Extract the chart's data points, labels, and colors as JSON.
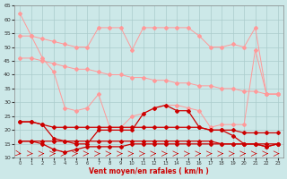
{
  "x": [
    0,
    1,
    2,
    3,
    4,
    5,
    6,
    7,
    8,
    9,
    10,
    11,
    12,
    13,
    14,
    15,
    16,
    17,
    18,
    19,
    20,
    21,
    22,
    23
  ],
  "series": {
    "rafale_top": [
      62,
      54,
      46,
      41,
      28,
      27,
      28,
      33,
      21,
      21,
      25,
      26,
      28,
      29,
      29,
      28,
      27,
      21,
      22,
      22,
      22,
      49,
      33,
      33
    ],
    "rafale_mid": [
      46,
      46,
      45,
      44,
      43,
      42,
      42,
      41,
      40,
      40,
      39,
      39,
      38,
      38,
      37,
      37,
      36,
      36,
      35,
      35,
      34,
      34,
      33,
      33
    ],
    "rafale_high": [
      54,
      54,
      53,
      52,
      51,
      50,
      50,
      57,
      57,
      57,
      49,
      57,
      57,
      57,
      57,
      57,
      54,
      50,
      50,
      51,
      50,
      57,
      33,
      33
    ],
    "wind_flat": [
      23,
      23,
      22,
      21,
      21,
      21,
      21,
      21,
      21,
      21,
      21,
      21,
      21,
      21,
      21,
      21,
      21,
      20,
      20,
      20,
      19,
      19,
      19,
      19
    ],
    "wind_mean": [
      23,
      23,
      22,
      17,
      16,
      15,
      15,
      20,
      20,
      20,
      20,
      26,
      28,
      29,
      27,
      27,
      21,
      20,
      20,
      18,
      15,
      15,
      14,
      15
    ],
    "wind_low": [
      16,
      16,
      15,
      13,
      12,
      13,
      14,
      14,
      14,
      14,
      15,
      15,
      15,
      15,
      15,
      15,
      15,
      15,
      15,
      15,
      15,
      15,
      14,
      15
    ],
    "wind_flat2": [
      16,
      16,
      16,
      16,
      16,
      16,
      16,
      16,
      16,
      16,
      16,
      16,
      16,
      16,
      16,
      16,
      16,
      16,
      15,
      15,
      15,
      15,
      15,
      15
    ]
  },
  "arrows_angles": [
    45,
    60,
    90,
    90,
    90,
    90,
    80,
    90,
    90,
    90,
    90,
    90,
    90,
    90,
    90,
    90,
    90,
    90,
    90,
    90,
    90,
    90,
    90,
    90
  ],
  "bg_color": "#cce8e8",
  "grid_color": "#aacccc",
  "dark_red": "#cc0000",
  "light_red": "#ff9999",
  "xlabel": "Vent moyen/en rafales ( km/h )",
  "ylim": [
    10,
    65
  ],
  "yticks": [
    10,
    15,
    20,
    25,
    30,
    35,
    40,
    45,
    50,
    55,
    60,
    65
  ],
  "xlim": [
    -0.5,
    23.5
  ]
}
